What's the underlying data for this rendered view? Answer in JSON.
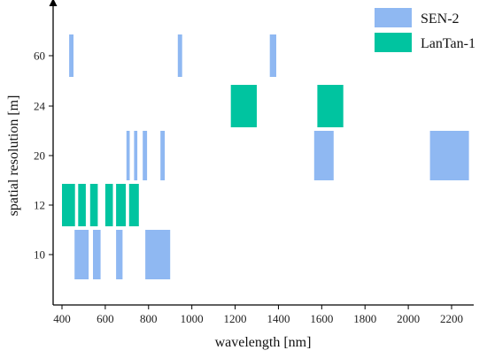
{
  "chart_data": {
    "type": "bar",
    "xlabel": "wavelength [nm]",
    "ylabel": "spatial resolution [m]",
    "x_ticks": [
      400,
      600,
      800,
      1000,
      1200,
      1400,
      1600,
      1800,
      2000,
      2200
    ],
    "y_categories": [
      "10",
      "12",
      "20",
      "24",
      "60"
    ],
    "xlim": [
      380,
      2290
    ],
    "grid": false,
    "legend_position": "top-right",
    "series": [
      {
        "name": "SEN-2",
        "color": "#8fb8f2",
        "bands": [
          {
            "resolution": "60",
            "start": 433,
            "end": 453
          },
          {
            "resolution": "60",
            "start": 935,
            "end": 955
          },
          {
            "resolution": "60",
            "start": 1360,
            "end": 1390
          },
          {
            "resolution": "20",
            "start": 698,
            "end": 713
          },
          {
            "resolution": "20",
            "start": 733,
            "end": 748
          },
          {
            "resolution": "20",
            "start": 773,
            "end": 793
          },
          {
            "resolution": "20",
            "start": 855,
            "end": 875
          },
          {
            "resolution": "20",
            "start": 1565,
            "end": 1655
          },
          {
            "resolution": "20",
            "start": 2100,
            "end": 2280
          },
          {
            "resolution": "10",
            "start": 458,
            "end": 523
          },
          {
            "resolution": "10",
            "start": 543,
            "end": 578
          },
          {
            "resolution": "10",
            "start": 650,
            "end": 680
          },
          {
            "resolution": "10",
            "start": 785,
            "end": 900
          }
        ]
      },
      {
        "name": "LanTan-1",
        "color": "#00c4a0",
        "bands": [
          {
            "resolution": "24",
            "start": 1180,
            "end": 1300
          },
          {
            "resolution": "24",
            "start": 1580,
            "end": 1700
          },
          {
            "resolution": "12",
            "start": 400,
            "end": 460
          },
          {
            "resolution": "12",
            "start": 475,
            "end": 510
          },
          {
            "resolution": "12",
            "start": 530,
            "end": 565
          },
          {
            "resolution": "12",
            "start": 600,
            "end": 635
          },
          {
            "resolution": "12",
            "start": 650,
            "end": 695
          },
          {
            "resolution": "12",
            "start": 710,
            "end": 755
          }
        ]
      }
    ]
  }
}
